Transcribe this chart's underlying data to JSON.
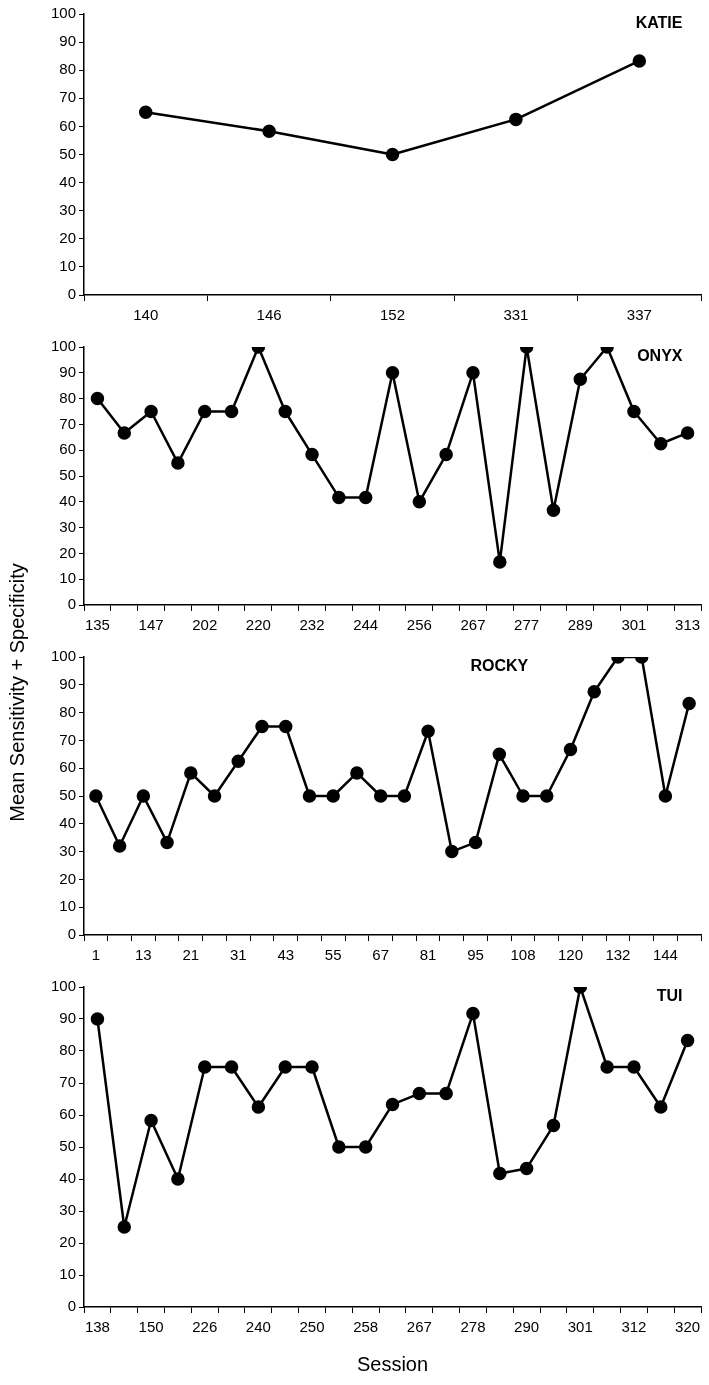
{
  "chart_data": [
    {
      "type": "line",
      "title": "KATIE",
      "categories": [
        "140",
        "146",
        "152",
        "331",
        "337"
      ],
      "series": [
        {
          "color": "#000000",
          "values": [
            65,
            58.3,
            50,
            62.5,
            83.3
          ]
        }
      ],
      "ylim": [
        0,
        100
      ],
      "yticks": [
        0,
        10,
        20,
        30,
        40,
        50,
        60,
        70,
        80,
        90,
        100
      ],
      "marker": "circle",
      "line_style": "solid"
    },
    {
      "type": "line",
      "title": "ONYX",
      "ylabel": "Mean Sensitivity + Specificity",
      "categories": [
        "135",
        null,
        "147",
        null,
        "202",
        null,
        "220",
        null,
        "232",
        null,
        "244",
        null,
        "256",
        null,
        "267",
        null,
        "277",
        null,
        "289",
        null,
        "301",
        null,
        "313"
      ],
      "series": [
        {
          "color": "#000000",
          "values": [
            80,
            66.7,
            75,
            55,
            75,
            75,
            100,
            75,
            58.3,
            41.7,
            41.7,
            90,
            40,
            58.3,
            90,
            16.7,
            100,
            36.7,
            87.5,
            100,
            75,
            62.5,
            66.7
          ]
        }
      ],
      "ylim": [
        0,
        100
      ],
      "yticks": [
        0,
        10,
        20,
        30,
        40,
        50,
        60,
        70,
        80,
        90,
        100
      ],
      "marker": "circle",
      "line_style": "solid"
    },
    {
      "type": "line",
      "title": "ROCKY",
      "categories": [
        "1",
        null,
        "13",
        null,
        "21",
        null,
        "31",
        null,
        "43",
        null,
        "55",
        null,
        "67",
        null,
        "81",
        null,
        "95",
        null,
        "108",
        null,
        "120",
        null,
        "132",
        null,
        "144",
        null
      ],
      "series": [
        {
          "color": "#000000",
          "values": [
            50,
            32,
            50,
            33.3,
            58.3,
            50,
            62.5,
            75,
            75,
            50,
            50,
            58.3,
            50,
            50,
            73.3,
            30,
            33.3,
            65,
            50,
            50,
            66.7,
            87.5,
            100,
            100,
            50,
            83.3
          ]
        }
      ],
      "ylim": [
        0,
        100
      ],
      "yticks": [
        0,
        10,
        20,
        30,
        40,
        50,
        60,
        70,
        80,
        90,
        100
      ],
      "marker": "circle",
      "line_style": "solid"
    },
    {
      "type": "line",
      "title": "TUI",
      "xlabel": "Session",
      "categories": [
        "138",
        null,
        "150",
        null,
        "226",
        null,
        "240",
        null,
        "250",
        null,
        "258",
        null,
        "267",
        null,
        "278",
        null,
        "290",
        null,
        "301",
        null,
        "312",
        null,
        "320"
      ],
      "series": [
        {
          "color": "#000000",
          "values": [
            90,
            25,
            58.3,
            40,
            75,
            75,
            62.5,
            75,
            75,
            50,
            50,
            63.3,
            66.7,
            66.7,
            91.7,
            41.7,
            43.3,
            56.7,
            100,
            75,
            75,
            62.5,
            83.3
          ]
        }
      ],
      "ylim": [
        0,
        100
      ],
      "yticks": [
        0,
        10,
        20,
        30,
        40,
        50,
        60,
        70,
        80,
        90,
        100
      ],
      "marker": "circle",
      "line_style": "solid"
    }
  ]
}
